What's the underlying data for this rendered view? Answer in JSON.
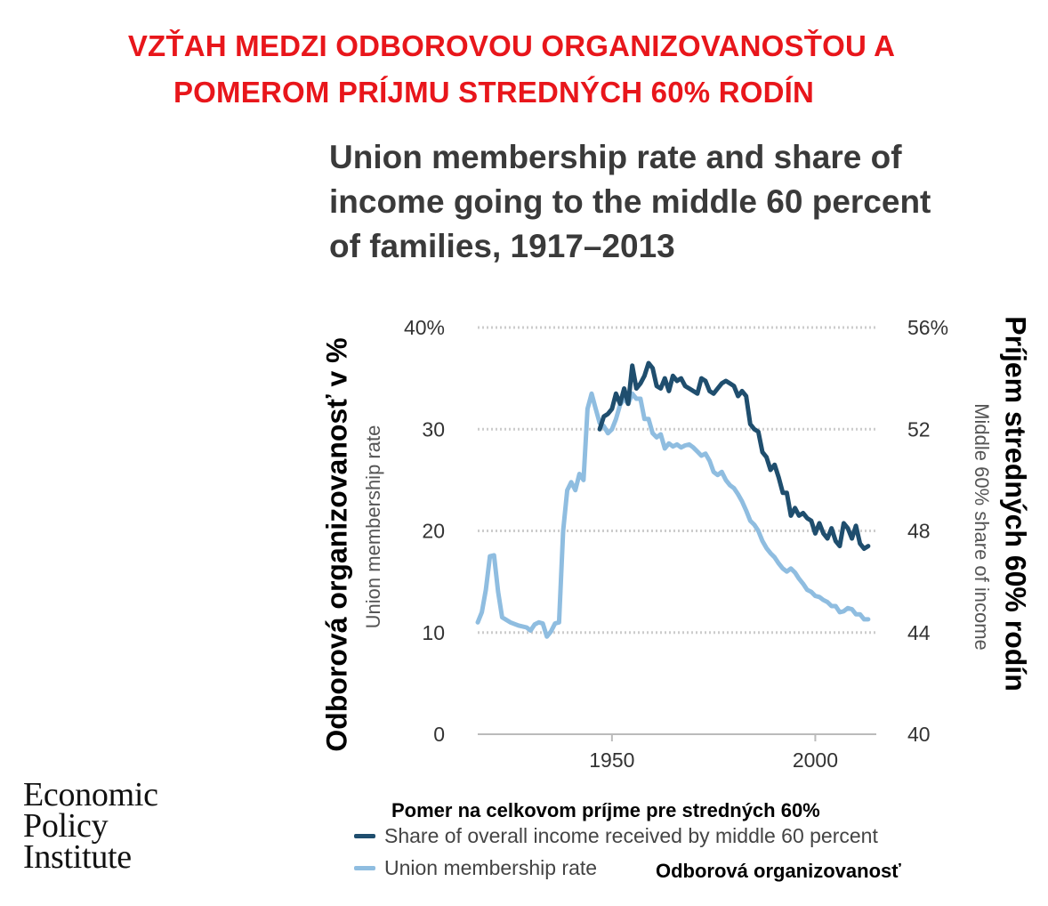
{
  "banner": {
    "line1": "VZŤAH MEDZI ODBOROVOU ORGANIZOVANOSŤOU A",
    "line2": "POMEROM PRÍJMU STREDNÝCH 60% RODÍN"
  },
  "overlay": {
    "left_axis": "Odborová organizovanosť v %",
    "right_axis": "Príjem stredných 60% rodín",
    "legend_share": "Pomer na celkovom príjme pre stredných 60%",
    "legend_union": "Odborová organizovanosť"
  },
  "logo": {
    "line1": "Economic",
    "line2": "Policy",
    "line3": "Institute"
  },
  "colors": {
    "share": "#1f4e6e",
    "union": "#8fbde0",
    "grid": "#cccccc",
    "banner": "#e8161b"
  },
  "chart_data": {
    "type": "line",
    "title_lines": [
      "Union membership rate and share of",
      "income going to the middle 60 percent",
      "of families, 1917–2013"
    ],
    "ylabel": "Union membership rate",
    "y2label": "Middle 60% share of income",
    "xlim": [
      1917,
      2015
    ],
    "ylim": [
      0,
      40
    ],
    "y2lim": [
      40,
      56
    ],
    "x_ticks": [
      1950,
      2000
    ],
    "y_ticks": [
      "0",
      "10",
      "20",
      "30",
      "40%"
    ],
    "y2_ticks": [
      "40",
      "44",
      "48",
      "52",
      "56%"
    ],
    "legend": [
      "Share of overall income received by middle 60 percent",
      "Union membership rate"
    ],
    "series": [
      {
        "name": "Union membership rate",
        "axis": "left",
        "x": [
          1917,
          1918,
          1919,
          1920,
          1921,
          1922,
          1923,
          1925,
          1927,
          1929,
          1930,
          1931,
          1932,
          1933,
          1934,
          1935,
          1936,
          1937,
          1938,
          1939,
          1940,
          1941,
          1942,
          1943,
          1944,
          1945,
          1946,
          1947,
          1948,
          1949,
          1950,
          1951,
          1952,
          1953,
          1954,
          1955,
          1956,
          1957,
          1958,
          1959,
          1960,
          1961,
          1962,
          1963,
          1964,
          1965,
          1966,
          1967,
          1968,
          1969,
          1970,
          1971,
          1972,
          1973,
          1974,
          1975,
          1976,
          1977,
          1978,
          1979,
          1980,
          1981,
          1982,
          1983,
          1984,
          1985,
          1986,
          1987,
          1988,
          1989,
          1990,
          1991,
          1992,
          1993,
          1994,
          1995,
          1996,
          1997,
          1998,
          1999,
          2000,
          2001,
          2002,
          2003,
          2004,
          2005,
          2006,
          2007,
          2008,
          2009,
          2010,
          2011,
          2012,
          2013
        ],
        "y": [
          11.0,
          12.0,
          14.2,
          17.5,
          17.6,
          14.0,
          11.5,
          11.0,
          10.7,
          10.5,
          10.2,
          10.8,
          11.0,
          10.9,
          9.6,
          10.1,
          10.9,
          11.0,
          20.0,
          24.0,
          24.8,
          24.0,
          25.6,
          25.0,
          32.0,
          33.5,
          32.0,
          30.6,
          30.3,
          29.6,
          30.0,
          31.0,
          32.4,
          33.0,
          32.5,
          33.5,
          33.0,
          33.0,
          31.0,
          31.0,
          29.6,
          29.2,
          29.5,
          28.1,
          28.6,
          28.3,
          28.5,
          28.2,
          28.4,
          28.5,
          28.2,
          27.8,
          27.4,
          27.6,
          26.9,
          25.8,
          25.5,
          25.8,
          25.0,
          24.5,
          24.2,
          23.6,
          22.9,
          22.0,
          21.0,
          20.6,
          20.0,
          19.0,
          18.3,
          17.8,
          17.4,
          16.8,
          16.3,
          16.0,
          16.3,
          15.9,
          15.3,
          14.8,
          14.2,
          14.0,
          13.6,
          13.5,
          13.2,
          13.0,
          12.6,
          12.6,
          12.0,
          12.1,
          12.4,
          12.3,
          11.8,
          11.8,
          11.3,
          11.3
        ]
      },
      {
        "name": "Share of overall income received by middle 60 percent",
        "axis": "right",
        "x": [
          1947,
          1948,
          1949,
          1950,
          1951,
          1952,
          1953,
          1954,
          1955,
          1956,
          1957,
          1958,
          1959,
          1960,
          1961,
          1962,
          1963,
          1964,
          1965,
          1966,
          1967,
          1968,
          1969,
          1970,
          1971,
          1972,
          1973,
          1974,
          1975,
          1976,
          1977,
          1978,
          1979,
          1980,
          1981,
          1982,
          1983,
          1984,
          1985,
          1986,
          1987,
          1988,
          1989,
          1990,
          1991,
          1992,
          1993,
          1994,
          1995,
          1996,
          1997,
          1998,
          1999,
          2000,
          2001,
          2002,
          2003,
          2004,
          2005,
          2006,
          2007,
          2008,
          2009,
          2010,
          2011,
          2012,
          2013
        ],
        "y": [
          52.0,
          52.5,
          52.6,
          52.8,
          53.4,
          53.0,
          53.6,
          53.0,
          54.5,
          53.6,
          53.8,
          54.1,
          54.6,
          54.4,
          53.7,
          53.6,
          54.0,
          53.5,
          54.1,
          53.9,
          54.0,
          53.7,
          53.6,
          53.5,
          53.4,
          54.0,
          53.9,
          53.5,
          53.4,
          53.6,
          53.8,
          53.9,
          53.8,
          53.7,
          53.3,
          53.5,
          53.3,
          52.2,
          52.0,
          51.9,
          51.1,
          50.9,
          50.4,
          50.6,
          50.1,
          49.5,
          49.5,
          48.6,
          48.9,
          48.6,
          48.7,
          48.5,
          48.4,
          47.9,
          48.3,
          47.9,
          47.7,
          48.1,
          47.6,
          47.4,
          48.3,
          48.1,
          47.7,
          48.2,
          47.5,
          47.3,
          47.4
        ]
      }
    ],
    "grid": true,
    "legend_position": "bottom"
  }
}
